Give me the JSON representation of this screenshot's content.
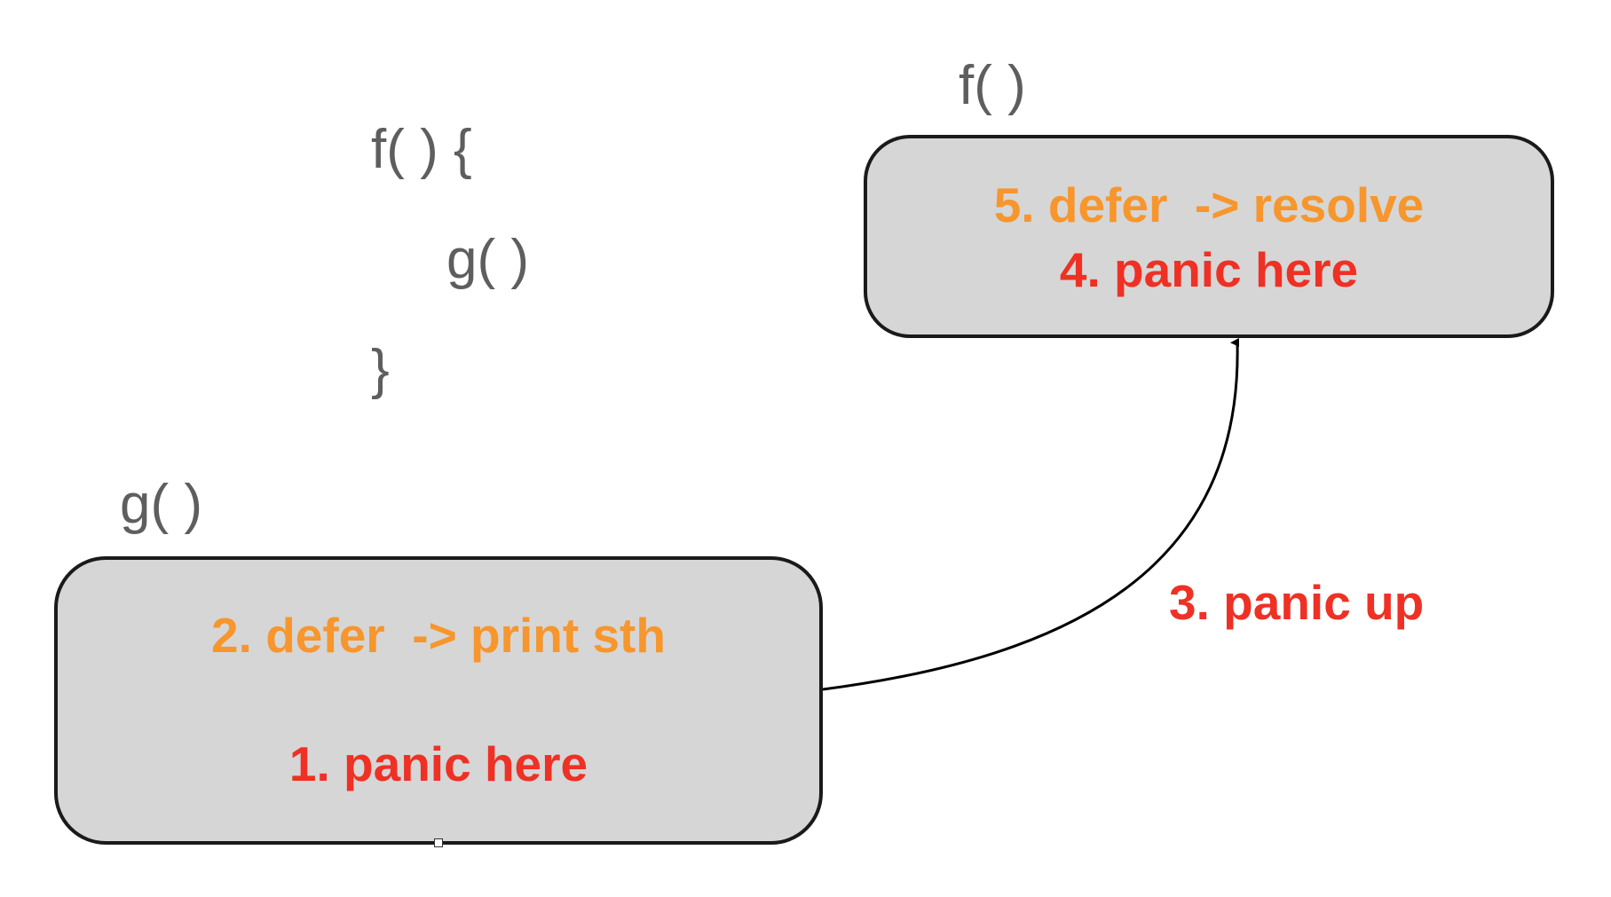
{
  "code": {
    "line1": "f( ) {",
    "line2": "g( )",
    "line3": "}"
  },
  "box_f": {
    "label": "f( )",
    "step5": "5. defer  -> resolve",
    "step4": "4. panic here"
  },
  "box_g": {
    "label": "g( )",
    "step2": "2. defer  -> print sth",
    "step1": "1. panic here"
  },
  "arrow": {
    "label": "3. panic up"
  },
  "colors": {
    "defer": "#f7962c",
    "panic": "#ee3124",
    "code": "#5e5e5e",
    "box_fill": "#d6d6d6"
  }
}
